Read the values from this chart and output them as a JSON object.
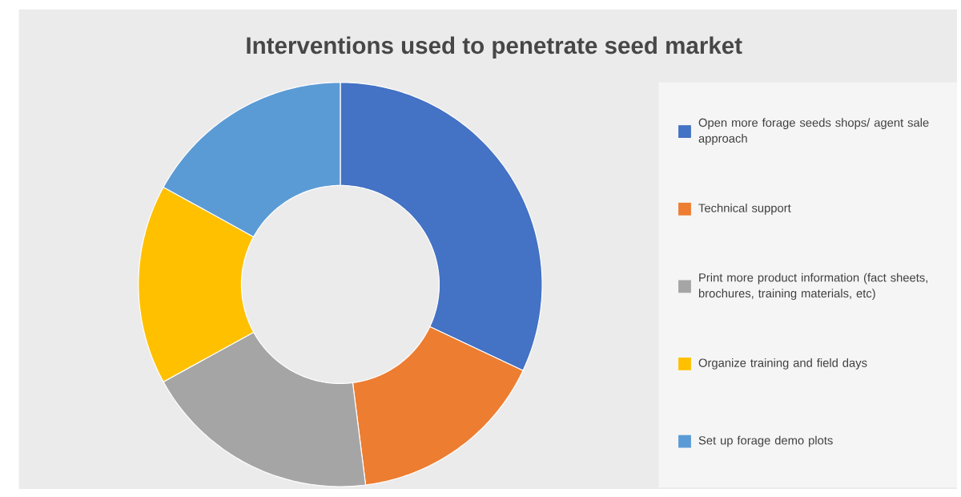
{
  "chart_data": {
    "type": "donut",
    "title": "Interventions used to penetrate seed market",
    "categories": [
      "Open more forage seeds shops/ agent sale approach",
      "Technical support",
      "Print more product information (fact sheets, brochures, training materials, etc)",
      "Organize training and field days",
      "Set up forage demo plots"
    ],
    "values": [
      32,
      16,
      19,
      16,
      17
    ],
    "colors": [
      "#4472c4",
      "#ed7d31",
      "#a5a5a5",
      "#ffc000",
      "#5b9bd5"
    ],
    "legend": "right"
  }
}
